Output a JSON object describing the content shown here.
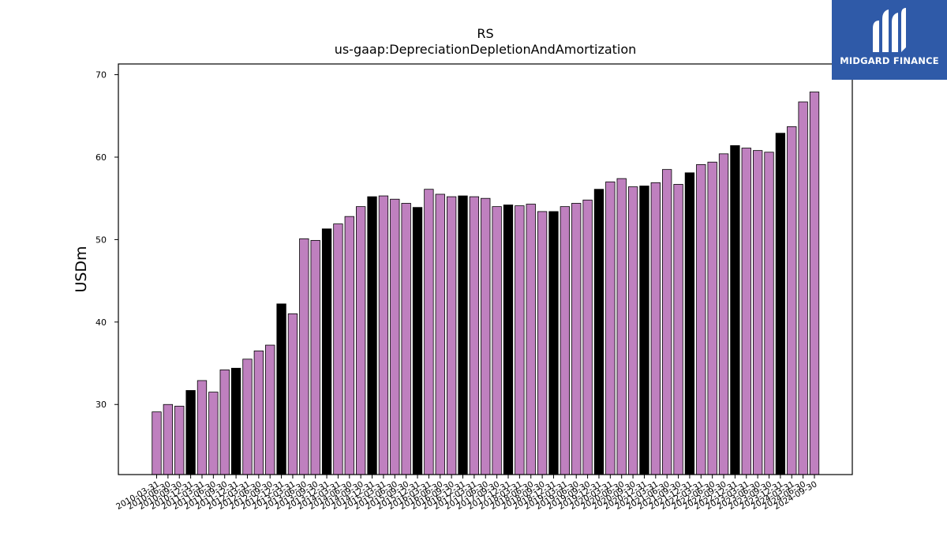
{
  "logo": {
    "text": "MIDGARD FINANCE",
    "icon": "midgard-m-logo-icon",
    "background": "#2f5aa8"
  },
  "chart_data": {
    "type": "bar",
    "title": "RS",
    "subtitle": "us-gaap:DepreciationDepletionAndAmortization",
    "xlabel": "",
    "ylabel": "USDm",
    "ylim": [
      21.5,
      71.3
    ],
    "yticks": [
      30,
      40,
      50,
      60,
      70
    ],
    "grid": false,
    "colors": {
      "default": "#bf80bf",
      "highlight": "#000000",
      "edge": "#000000"
    },
    "categories": [
      "2010-03-31",
      "2010-06-30",
      "2010-09-30",
      "2010-12-31",
      "2011-03-31",
      "2011-06-30",
      "2011-09-30",
      "2011-12-31",
      "2012-03-31",
      "2012-06-30",
      "2012-09-30",
      "2012-12-31",
      "2013-03-31",
      "2013-06-30",
      "2013-09-30",
      "2013-12-31",
      "2014-03-31",
      "2014-06-30",
      "2014-09-30",
      "2014-12-31",
      "2015-03-31",
      "2015-06-30",
      "2015-09-30",
      "2015-12-31",
      "2016-03-31",
      "2016-06-30",
      "2016-09-30",
      "2016-12-31",
      "2017-03-31",
      "2017-06-30",
      "2017-09-30",
      "2017-12-31",
      "2018-03-31",
      "2018-06-30",
      "2018-09-30",
      "2018-12-31",
      "2019-03-31",
      "2019-06-30",
      "2019-09-30",
      "2019-12-31",
      "2020-03-31",
      "2020-06-30",
      "2020-09-30",
      "2020-12-31",
      "2021-03-31",
      "2021-06-30",
      "2021-09-30",
      "2021-12-31",
      "2022-03-31",
      "2022-06-30",
      "2022-09-30",
      "2022-12-31",
      "2023-03-31",
      "2023-06-30",
      "2023-09-30",
      "2023-12-31",
      "2024-03-31",
      "2024-06-30",
      "2024-09-30"
    ],
    "values": [
      29.1,
      30.0,
      29.8,
      31.7,
      32.9,
      31.5,
      34.2,
      34.4,
      35.5,
      36.5,
      37.2,
      42.2,
      41.0,
      50.1,
      49.9,
      51.3,
      51.9,
      52.8,
      54.0,
      55.2,
      55.3,
      54.9,
      54.4,
      53.9,
      56.1,
      55.5,
      55.2,
      55.3,
      55.2,
      55.0,
      54.0,
      54.2,
      54.1,
      54.3,
      53.4,
      53.4,
      54.0,
      54.4,
      54.8,
      56.1,
      57.0,
      57.4,
      56.4,
      56.5,
      56.9,
      58.5,
      56.7,
      58.1,
      59.1,
      59.4,
      60.4,
      61.4,
      61.1,
      60.8,
      60.6,
      62.9,
      63.7,
      66.7,
      67.9
    ],
    "highlighted": [
      false,
      false,
      false,
      true,
      false,
      false,
      false,
      true,
      false,
      false,
      false,
      true,
      false,
      false,
      false,
      true,
      false,
      false,
      false,
      true,
      false,
      false,
      false,
      true,
      false,
      false,
      false,
      true,
      false,
      false,
      false,
      true,
      false,
      false,
      false,
      true,
      false,
      false,
      false,
      true,
      false,
      false,
      false,
      true,
      false,
      false,
      false,
      true,
      false,
      false,
      false,
      true,
      false,
      false,
      false,
      true,
      false,
      false,
      false
    ]
  }
}
